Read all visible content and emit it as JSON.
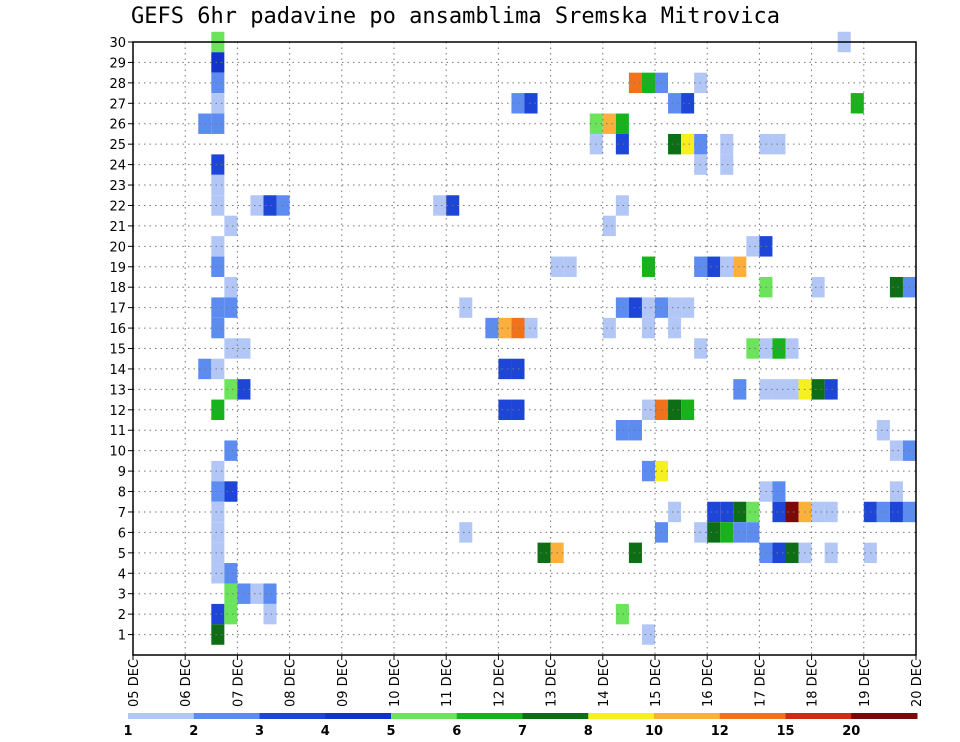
{
  "chart_data": {
    "type": "heatmap",
    "title": "GEFS 6hr padavine po ansamblima Sremska Mitrovica",
    "xlabel": "",
    "ylabel": "",
    "x_tick_labels": [
      "05 DEC",
      "06 DEC",
      "07 DEC",
      "08 DEC",
      "09 DEC",
      "10 DEC",
      "11 DEC",
      "12 DEC",
      "13 DEC",
      "14 DEC",
      "15 DEC",
      "16 DEC",
      "17 DEC",
      "18 DEC",
      "19 DEC",
      "20 DEC"
    ],
    "xlim": [
      0,
      15
    ],
    "y_ticks": [
      1,
      2,
      3,
      4,
      5,
      6,
      7,
      8,
      9,
      10,
      11,
      12,
      13,
      14,
      15,
      16,
      17,
      18,
      19,
      20,
      21,
      22,
      23,
      24,
      25,
      26,
      27,
      28,
      29,
      30
    ],
    "ylim": [
      0,
      30
    ],
    "time_step_days": 0.25,
    "grid": true,
    "legend_position": "bottom",
    "legend": {
      "boundaries": [
        1,
        2,
        3,
        4,
        5,
        6,
        7,
        8,
        10,
        12,
        15,
        20
      ],
      "labels": [
        "1",
        "2",
        "3",
        "4",
        "5",
        "6",
        "7",
        "8",
        "10",
        "12",
        "15",
        "20"
      ],
      "colors": [
        "#b3c7f7",
        "#5d8cf0",
        "#1e46d6",
        "#1233c8",
        "#6be35a",
        "#18b21c",
        "#0e6e15",
        "#f6f01e",
        "#fbb03b",
        "#f0731c",
        "#cf2a14",
        "#7a0a0a"
      ]
    },
    "cells": [
      {
        "m": 30,
        "t": 1.5,
        "c": 5
      },
      {
        "m": 30,
        "t": 13.5,
        "c": 1
      },
      {
        "m": 29,
        "t": 1.5,
        "c": 4
      },
      {
        "m": 28,
        "t": 1.5,
        "c": 2
      },
      {
        "m": 28,
        "t": 9.5,
        "c": 10
      },
      {
        "m": 28,
        "t": 9.75,
        "c": 6
      },
      {
        "m": 28,
        "t": 10.0,
        "c": 2
      },
      {
        "m": 28,
        "t": 10.75,
        "c": 1
      },
      {
        "m": 27,
        "t": 1.5,
        "c": 1
      },
      {
        "m": 27,
        "t": 7.25,
        "c": 2
      },
      {
        "m": 27,
        "t": 7.5,
        "c": 3
      },
      {
        "m": 27,
        "t": 10.25,
        "c": 2
      },
      {
        "m": 27,
        "t": 10.5,
        "c": 3
      },
      {
        "m": 27,
        "t": 13.75,
        "c": 6
      },
      {
        "m": 26,
        "t": 1.25,
        "c": 2
      },
      {
        "m": 26,
        "t": 1.5,
        "c": 2
      },
      {
        "m": 26,
        "t": 8.75,
        "c": 5
      },
      {
        "m": 26,
        "t": 9.0,
        "c": 9
      },
      {
        "m": 26,
        "t": 9.25,
        "c": 6
      },
      {
        "m": 25,
        "t": 8.75,
        "c": 1
      },
      {
        "m": 25,
        "t": 9.25,
        "c": 3
      },
      {
        "m": 25,
        "t": 10.25,
        "c": 7
      },
      {
        "m": 25,
        "t": 10.5,
        "c": 8
      },
      {
        "m": 25,
        "t": 10.75,
        "c": 2
      },
      {
        "m": 25,
        "t": 11.25,
        "c": 1
      },
      {
        "m": 25,
        "t": 12.0,
        "c": 1
      },
      {
        "m": 25,
        "t": 12.25,
        "c": 1
      },
      {
        "m": 24,
        "t": 1.5,
        "c": 3
      },
      {
        "m": 24,
        "t": 10.75,
        "c": 1
      },
      {
        "m": 24,
        "t": 11.25,
        "c": 1
      },
      {
        "m": 23,
        "t": 1.5,
        "c": 1
      },
      {
        "m": 22,
        "t": 1.5,
        "c": 1
      },
      {
        "m": 22,
        "t": 2.25,
        "c": 1
      },
      {
        "m": 22,
        "t": 2.5,
        "c": 3
      },
      {
        "m": 22,
        "t": 2.75,
        "c": 2
      },
      {
        "m": 22,
        "t": 5.75,
        "c": 1
      },
      {
        "m": 22,
        "t": 6.0,
        "c": 3
      },
      {
        "m": 22,
        "t": 9.25,
        "c": 1
      },
      {
        "m": 21,
        "t": 1.75,
        "c": 1
      },
      {
        "m": 21,
        "t": 9.0,
        "c": 1
      },
      {
        "m": 20,
        "t": 1.5,
        "c": 1
      },
      {
        "m": 20,
        "t": 11.75,
        "c": 1
      },
      {
        "m": 20,
        "t": 12.0,
        "c": 3
      },
      {
        "m": 19,
        "t": 1.5,
        "c": 2
      },
      {
        "m": 19,
        "t": 8.0,
        "c": 1
      },
      {
        "m": 19,
        "t": 8.25,
        "c": 1
      },
      {
        "m": 19,
        "t": 9.75,
        "c": 6
      },
      {
        "m": 19,
        "t": 10.75,
        "c": 2
      },
      {
        "m": 19,
        "t": 11.0,
        "c": 3
      },
      {
        "m": 19,
        "t": 11.25,
        "c": 1
      },
      {
        "m": 19,
        "t": 11.5,
        "c": 9
      },
      {
        "m": 18,
        "t": 1.75,
        "c": 1
      },
      {
        "m": 18,
        "t": 12.0,
        "c": 5
      },
      {
        "m": 18,
        "t": 13.0,
        "c": 1
      },
      {
        "m": 18,
        "t": 14.5,
        "c": 7
      },
      {
        "m": 18,
        "t": 14.75,
        "c": 2
      },
      {
        "m": 17,
        "t": 1.5,
        "c": 2
      },
      {
        "m": 17,
        "t": 1.75,
        "c": 2
      },
      {
        "m": 17,
        "t": 6.25,
        "c": 1
      },
      {
        "m": 17,
        "t": 9.25,
        "c": 2
      },
      {
        "m": 17,
        "t": 9.5,
        "c": 3
      },
      {
        "m": 17,
        "t": 9.75,
        "c": 1
      },
      {
        "m": 17,
        "t": 10.0,
        "c": 2
      },
      {
        "m": 17,
        "t": 10.25,
        "c": 1
      },
      {
        "m": 17,
        "t": 10.5,
        "c": 1
      },
      {
        "m": 16,
        "t": 1.5,
        "c": 2
      },
      {
        "m": 16,
        "t": 6.75,
        "c": 2
      },
      {
        "m": 16,
        "t": 7.0,
        "c": 9
      },
      {
        "m": 16,
        "t": 7.25,
        "c": 10
      },
      {
        "m": 16,
        "t": 7.5,
        "c": 1
      },
      {
        "m": 16,
        "t": 9.0,
        "c": 1
      },
      {
        "m": 16,
        "t": 9.75,
        "c": 1
      },
      {
        "m": 16,
        "t": 10.25,
        "c": 1
      },
      {
        "m": 15,
        "t": 1.75,
        "c": 1
      },
      {
        "m": 15,
        "t": 2.0,
        "c": 1
      },
      {
        "m": 15,
        "t": 10.75,
        "c": 1
      },
      {
        "m": 15,
        "t": 11.75,
        "c": 5
      },
      {
        "m": 15,
        "t": 12.0,
        "c": 1
      },
      {
        "m": 15,
        "t": 12.25,
        "c": 6
      },
      {
        "m": 15,
        "t": 12.5,
        "c": 1
      },
      {
        "m": 14,
        "t": 1.25,
        "c": 2
      },
      {
        "m": 14,
        "t": 1.5,
        "c": 1
      },
      {
        "m": 14,
        "t": 7.0,
        "c": 3
      },
      {
        "m": 14,
        "t": 7.25,
        "c": 3
      },
      {
        "m": 13,
        "t": 1.75,
        "c": 5
      },
      {
        "m": 13,
        "t": 2.0,
        "c": 3
      },
      {
        "m": 13,
        "t": 11.5,
        "c": 2
      },
      {
        "m": 13,
        "t": 12.0,
        "c": 1
      },
      {
        "m": 13,
        "t": 12.25,
        "c": 1
      },
      {
        "m": 13,
        "t": 12.5,
        "c": 1
      },
      {
        "m": 13,
        "t": 12.75,
        "c": 8
      },
      {
        "m": 13,
        "t": 13.0,
        "c": 7
      },
      {
        "m": 13,
        "t": 13.25,
        "c": 3
      },
      {
        "m": 12,
        "t": 1.5,
        "c": 6
      },
      {
        "m": 12,
        "t": 7.0,
        "c": 3
      },
      {
        "m": 12,
        "t": 7.25,
        "c": 3
      },
      {
        "m": 12,
        "t": 9.75,
        "c": 1
      },
      {
        "m": 12,
        "t": 10.0,
        "c": 10
      },
      {
        "m": 12,
        "t": 10.25,
        "c": 7
      },
      {
        "m": 12,
        "t": 10.5,
        "c": 6
      },
      {
        "m": 11,
        "t": 9.25,
        "c": 2
      },
      {
        "m": 11,
        "t": 9.5,
        "c": 2
      },
      {
        "m": 11,
        "t": 14.25,
        "c": 1
      },
      {
        "m": 10,
        "t": 1.75,
        "c": 2
      },
      {
        "m": 10,
        "t": 14.5,
        "c": 1
      },
      {
        "m": 10,
        "t": 14.75,
        "c": 2
      },
      {
        "m": 9,
        "t": 1.5,
        "c": 1
      },
      {
        "m": 9,
        "t": 9.75,
        "c": 2
      },
      {
        "m": 9,
        "t": 10.0,
        "c": 8
      },
      {
        "m": 8,
        "t": 1.5,
        "c": 2
      },
      {
        "m": 8,
        "t": 1.75,
        "c": 3
      },
      {
        "m": 8,
        "t": 12.0,
        "c": 1
      },
      {
        "m": 8,
        "t": 12.25,
        "c": 2
      },
      {
        "m": 8,
        "t": 14.5,
        "c": 1
      },
      {
        "m": 7,
        "t": 1.5,
        "c": 1
      },
      {
        "m": 7,
        "t": 10.25,
        "c": 1
      },
      {
        "m": 7,
        "t": 11.0,
        "c": 3
      },
      {
        "m": 7,
        "t": 11.25,
        "c": 3
      },
      {
        "m": 7,
        "t": 11.5,
        "c": 7
      },
      {
        "m": 7,
        "t": 11.75,
        "c": 5
      },
      {
        "m": 7,
        "t": 12.25,
        "c": 3
      },
      {
        "m": 7,
        "t": 12.5,
        "c": 12
      },
      {
        "m": 7,
        "t": 12.75,
        "c": 9
      },
      {
        "m": 7,
        "t": 13.0,
        "c": 1
      },
      {
        "m": 7,
        "t": 13.25,
        "c": 1
      },
      {
        "m": 7,
        "t": 14.0,
        "c": 3
      },
      {
        "m": 7,
        "t": 14.25,
        "c": 2
      },
      {
        "m": 7,
        "t": 14.5,
        "c": 3
      },
      {
        "m": 7,
        "t": 14.75,
        "c": 2
      },
      {
        "m": 6,
        "t": 1.5,
        "c": 1
      },
      {
        "m": 6,
        "t": 6.25,
        "c": 1
      },
      {
        "m": 6,
        "t": 10.0,
        "c": 2
      },
      {
        "m": 6,
        "t": 10.75,
        "c": 1
      },
      {
        "m": 6,
        "t": 11.0,
        "c": 7
      },
      {
        "m": 6,
        "t": 11.25,
        "c": 6
      },
      {
        "m": 6,
        "t": 11.5,
        "c": 2
      },
      {
        "m": 6,
        "t": 11.75,
        "c": 2
      },
      {
        "m": 5,
        "t": 1.5,
        "c": 1
      },
      {
        "m": 5,
        "t": 7.75,
        "c": 7
      },
      {
        "m": 5,
        "t": 8.0,
        "c": 9
      },
      {
        "m": 5,
        "t": 9.5,
        "c": 7
      },
      {
        "m": 5,
        "t": 12.0,
        "c": 2
      },
      {
        "m": 5,
        "t": 12.25,
        "c": 3
      },
      {
        "m": 5,
        "t": 12.5,
        "c": 7
      },
      {
        "m": 5,
        "t": 12.75,
        "c": 1
      },
      {
        "m": 5,
        "t": 13.25,
        "c": 1
      },
      {
        "m": 5,
        "t": 14.0,
        "c": 1
      },
      {
        "m": 4,
        "t": 1.5,
        "c": 1
      },
      {
        "m": 4,
        "t": 1.75,
        "c": 2
      },
      {
        "m": 3,
        "t": 1.75,
        "c": 5
      },
      {
        "m": 3,
        "t": 2.0,
        "c": 2
      },
      {
        "m": 3,
        "t": 2.25,
        "c": 1
      },
      {
        "m": 3,
        "t": 2.5,
        "c": 2
      },
      {
        "m": 2,
        "t": 1.5,
        "c": 3
      },
      {
        "m": 2,
        "t": 1.75,
        "c": 5
      },
      {
        "m": 2,
        "t": 2.5,
        "c": 1
      },
      {
        "m": 2,
        "t": 9.25,
        "c": 5
      },
      {
        "m": 1,
        "t": 1.5,
        "c": 7
      },
      {
        "m": 1,
        "t": 9.75,
        "c": 1
      }
    ]
  }
}
